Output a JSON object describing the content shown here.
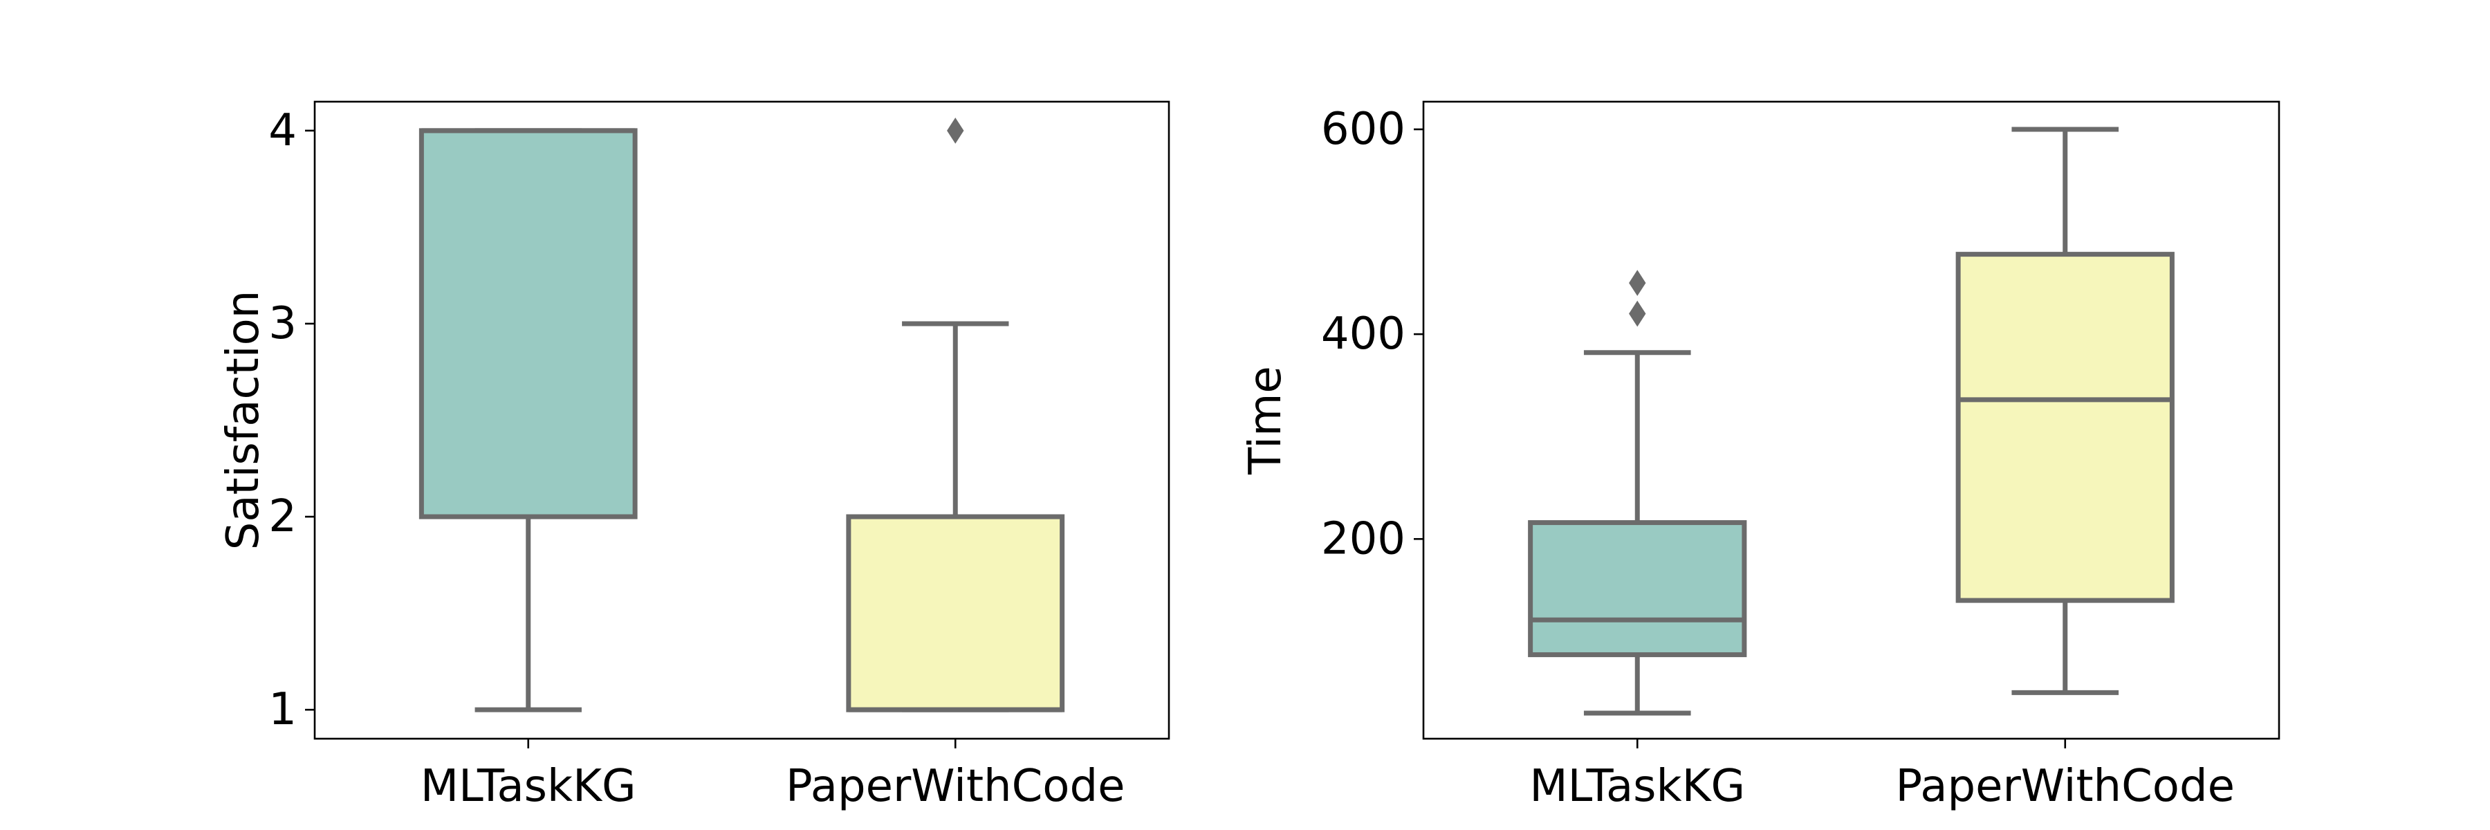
{
  "chart_data": [
    {
      "type": "box",
      "title": "",
      "xlabel": "",
      "ylabel": "Satisfaction",
      "ylim": [
        0.85,
        4.15
      ],
      "yticks": [
        1,
        2,
        3,
        4
      ],
      "ytick_labels": [
        "1",
        "2",
        "3",
        "4"
      ],
      "grid": false,
      "categories": [
        "MLTaskKG",
        "PaperWithCode"
      ],
      "boxes": [
        {
          "category": "MLTaskKG",
          "whisker_low": 1,
          "q1": 2,
          "median": 4,
          "q3": 4,
          "whisker_high": 4,
          "outliers": []
        },
        {
          "category": "PaperWithCode",
          "whisker_low": 1,
          "q1": 1,
          "median": 1,
          "q3": 2,
          "whisker_high": 3,
          "outliers": [
            4
          ]
        }
      ]
    },
    {
      "type": "box",
      "title": "",
      "xlabel": "",
      "ylabel": "Time",
      "ylim": [
        5,
        627
      ],
      "yticks": [
        200,
        400,
        600
      ],
      "ytick_labels": [
        "200",
        "400",
        "600"
      ],
      "grid": false,
      "categories": [
        "MLTaskKG",
        "PaperWithCode"
      ],
      "boxes": [
        {
          "category": "MLTaskKG",
          "whisker_low": 30,
          "q1": 87,
          "median": 121,
          "q3": 216,
          "whisker_high": 382,
          "outliers": [
            420,
            450
          ]
        },
        {
          "category": "PaperWithCode",
          "whisker_low": 50,
          "q1": 140,
          "median": 336,
          "q3": 478,
          "whisker_high": 600,
          "outliers": []
        }
      ]
    }
  ],
  "colors": {
    "box_fills": [
      "#99cac2",
      "#f6f6bb"
    ],
    "box_edge": "#6b6b6b",
    "axis": "#000000",
    "background": "#ffffff"
  }
}
